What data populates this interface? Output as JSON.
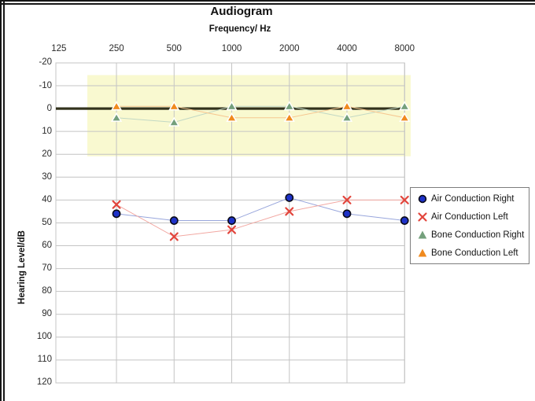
{
  "chart_data": {
    "type": "line",
    "title": "Audiogram",
    "x_axis": {
      "label": "Frequency/ Hz",
      "scale": "log-octave",
      "ticks": [
        "125",
        "250",
        "500",
        "1000",
        "2000",
        "4000",
        "8000"
      ]
    },
    "y_axis": {
      "label": "Hearing Level/dB",
      "min": -20,
      "max": 120,
      "step": 10,
      "inverted": true,
      "tick_labels": [
        "-20",
        "-10",
        "0",
        "10",
        "20",
        "30",
        "40",
        "50",
        "60",
        "70",
        "80",
        "90",
        "100",
        "110",
        "120"
      ]
    },
    "grid": true,
    "gridline_color": "#c4c4c4",
    "normal_range_band": {
      "db_from": -15,
      "db_to": 20,
      "color": "#f9f9d0"
    },
    "zero_line": {
      "db": 0,
      "color": "#32321c"
    },
    "legend": {
      "position": "right-middle"
    },
    "frequencies": [
      250,
      500,
      1000,
      2000,
      4000,
      8000
    ],
    "series": [
      {
        "name": "Air Conduction Right",
        "marker": "circle",
        "marker_color": "#1e32c8",
        "marker_edge": "#0a0a18",
        "line_color": "#98a6dc",
        "values_db": [
          46,
          49,
          49,
          39,
          46,
          49
        ]
      },
      {
        "name": "Air Conduction Left",
        "marker": "x",
        "marker_color": "#e2453c",
        "marker_edge": "#e2453c",
        "line_color": "#f2a8a2",
        "values_db": [
          42,
          56,
          53,
          45,
          40,
          40
        ]
      },
      {
        "name": "Bone Conduction Right",
        "marker": "triangle",
        "marker_color": "#74a07c",
        "marker_edge": "#ffffff",
        "line_color": "#c2d8c4",
        "values_db": [
          4,
          6,
          -1,
          -1,
          4,
          -1
        ]
      },
      {
        "name": "Bone Conduction Left",
        "marker": "triangle",
        "marker_color": "#f08a1e",
        "marker_edge": "#ffffff",
        "line_color": "#f6c791",
        "values_db": [
          -1,
          -1,
          4,
          4,
          -1,
          4
        ]
      }
    ]
  }
}
